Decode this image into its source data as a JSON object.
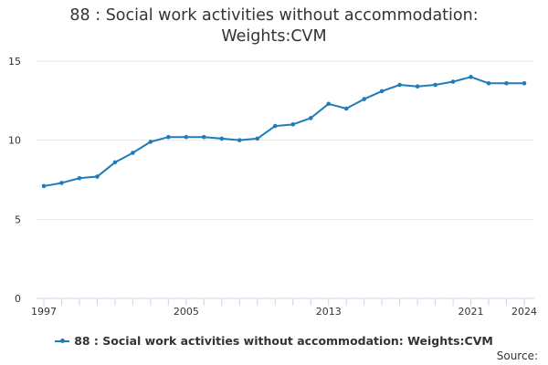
{
  "title_lines": [
    "88 : Social work activities without accommodation:",
    "Weights:CVM"
  ],
  "legend_label": "88 : Social work activities without accommodation: Weights:CVM",
  "source_label": "Source:",
  "colors": {
    "series": "#1f7cb8",
    "grid": "#e6e6e6",
    "axis": "#ccd6eb"
  },
  "chart_data": {
    "type": "line",
    "title": "88 : Social work activities without accommodation: Weights:CVM",
    "xlabel": "",
    "ylabel": "",
    "ylim": [
      0,
      15
    ],
    "yticks": [
      "0",
      "5",
      "10",
      "15"
    ],
    "xtick_labels": [
      "1997",
      "2005",
      "2013",
      "2021",
      "2024"
    ],
    "xlim": [
      1997,
      2024
    ],
    "grid": true,
    "legend_position": "bottom",
    "series": [
      {
        "name": "88 : Social work activities without accommodation: Weights:CVM",
        "x": [
          1997,
          1998,
          1999,
          2000,
          2001,
          2002,
          2003,
          2004,
          2005,
          2006,
          2007,
          2008,
          2009,
          2010,
          2011,
          2012,
          2013,
          2014,
          2015,
          2016,
          2017,
          2018,
          2019,
          2020,
          2021,
          2022,
          2023,
          2024
        ],
        "values": [
          7.1,
          7.3,
          7.6,
          7.7,
          8.6,
          9.2,
          9.9,
          10.2,
          10.2,
          10.2,
          10.1,
          10.0,
          10.1,
          10.9,
          11.0,
          11.4,
          12.3,
          12.0,
          12.6,
          13.1,
          13.5,
          13.4,
          13.5,
          13.7,
          14.0,
          13.6,
          13.6,
          13.6
        ]
      }
    ]
  }
}
